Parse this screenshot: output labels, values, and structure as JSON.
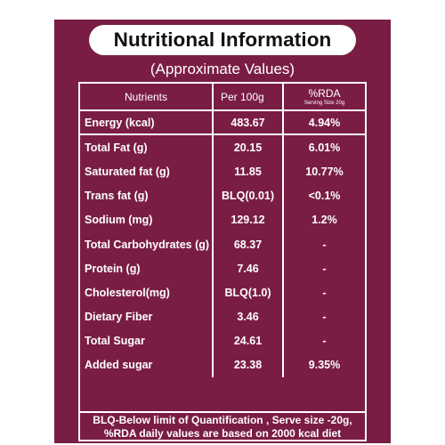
{
  "colors": {
    "panel_background": "#7a1d45",
    "text": "#ffffff",
    "title_pill": "#ffffff"
  },
  "title": "Nutritional Information",
  "subtitle": "(Approximate Values)",
  "table": {
    "headers": {
      "nutrients": "Nutrients",
      "per_100g": "Per 100g",
      "rda": "%RDA",
      "rda_note": "Serving Size 20g"
    },
    "rows": [
      {
        "nutrient": "Energy (kcal)",
        "per_100g": "483.67",
        "rda": "4.94%"
      },
      {
        "nutrient": "Total Fat (g)",
        "per_100g": "20.15",
        "rda": "6.01%"
      },
      {
        "nutrient": "Saturated fat (g)",
        "per_100g": "11.85",
        "rda": "10.77%"
      },
      {
        "nutrient": "Trans fat (g)",
        "per_100g": "BLQ(0.01)",
        "rda": "<0.1%"
      },
      {
        "nutrient": "Sodium (mg)",
        "per_100g": "129.12",
        "rda": "1.2%"
      },
      {
        "nutrient": "Total Carbohydrates (g)",
        "per_100g": "68.37",
        "rda": "-"
      },
      {
        "nutrient": "Protein (g)",
        "per_100g": "7.46",
        "rda": "-"
      },
      {
        "nutrient": "Cholesterol(mg)",
        "per_100g": "BLQ(1.0)",
        "rda": "-"
      },
      {
        "nutrient": "Dietary Fiber",
        "per_100g": "3.46",
        "rda": "-"
      },
      {
        "nutrient": "Total Sugar",
        "per_100g": "24.61",
        "rda": "-"
      },
      {
        "nutrient": "Added sugar",
        "per_100g": "23.38",
        "rda": "9.35%"
      }
    ]
  },
  "footnote": {
    "line1": "BLQ-Below limit of Quantification , Serve size -20g,",
    "line2": "%RDA daily values are based on 2000 kcal diet"
  }
}
